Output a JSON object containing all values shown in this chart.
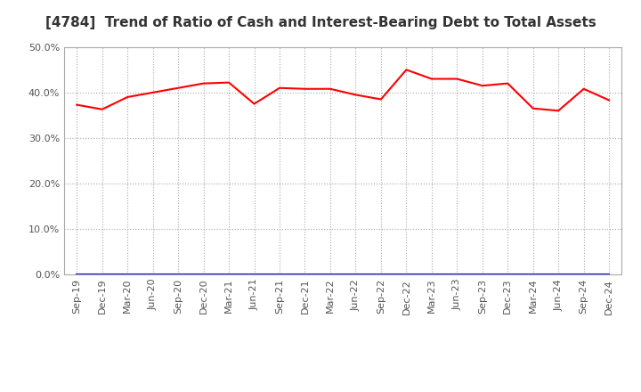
{
  "title": "[4784]  Trend of Ratio of Cash and Interest-Bearing Debt to Total Assets",
  "x_labels": [
    "Sep-19",
    "Dec-19",
    "Mar-20",
    "Jun-20",
    "Sep-20",
    "Dec-20",
    "Mar-21",
    "Jun-21",
    "Sep-21",
    "Dec-21",
    "Mar-22",
    "Jun-22",
    "Sep-22",
    "Dec-22",
    "Mar-23",
    "Jun-23",
    "Sep-23",
    "Dec-23",
    "Mar-24",
    "Jun-24",
    "Sep-24",
    "Dec-24"
  ],
  "cash": [
    0.373,
    0.363,
    0.39,
    0.4,
    0.41,
    0.42,
    0.422,
    0.375,
    0.41,
    0.408,
    0.408,
    0.395,
    0.385,
    0.45,
    0.43,
    0.43,
    0.415,
    0.42,
    0.365,
    0.36,
    0.408,
    0.383
  ],
  "interest_bearing_debt": [
    0.0,
    0.0,
    0.0,
    0.0,
    0.0,
    0.0,
    0.0,
    0.0,
    0.0,
    0.0,
    0.0,
    0.0,
    0.0,
    0.0,
    0.0,
    0.0,
    0.0,
    0.0,
    0.0,
    0.0,
    0.0,
    0.0
  ],
  "cash_color": "#ff0000",
  "debt_color": "#0000ff",
  "ylim": [
    0.0,
    0.5
  ],
  "yticks": [
    0.0,
    0.1,
    0.2,
    0.3,
    0.4,
    0.5
  ],
  "background_color": "#ffffff",
  "grid_color": "#aaaaaa",
  "title_fontsize": 11,
  "tick_color": "#555555",
  "tick_fontsize": 8,
  "legend_fontsize": 9
}
